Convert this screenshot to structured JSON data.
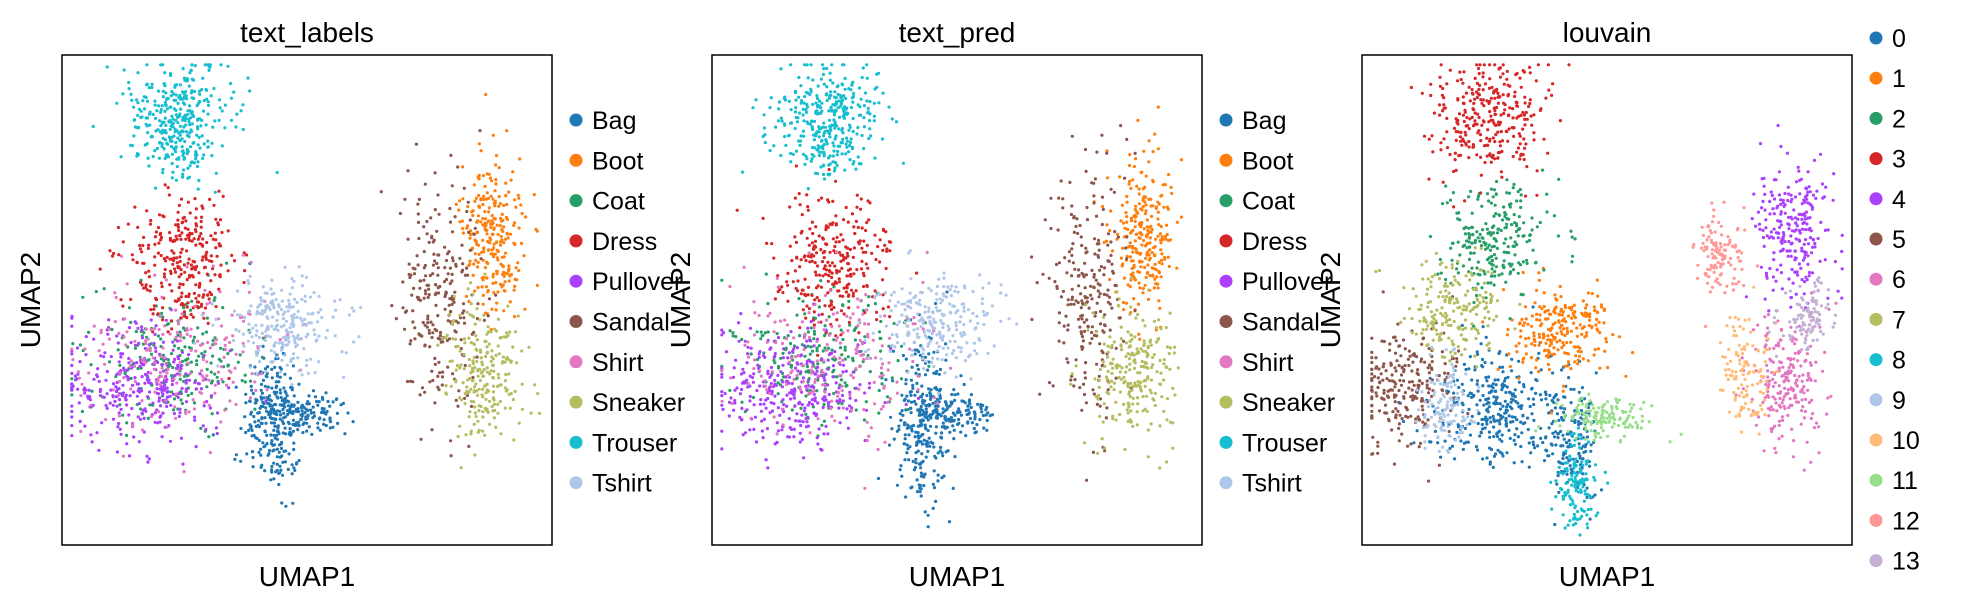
{
  "figure": {
    "background": "#ffffff"
  },
  "chart_data": [
    {
      "type": "scatter",
      "title": "text_labels",
      "xlabel": "UMAP1",
      "ylabel": "UMAP2",
      "xticks": false,
      "yticks": false,
      "legend_position": "right",
      "categories": [
        "Bag",
        "Boot",
        "Coat",
        "Dress",
        "Pullover",
        "Sandal",
        "Shirt",
        "Sneaker",
        "Trouser",
        "Tshirt"
      ],
      "colors": [
        "#1f77b4",
        "#ff7f0e",
        "#279e68",
        "#d62728",
        "#aa40fc",
        "#8c564b",
        "#e377c2",
        "#b5bd61",
        "#17becf",
        "#aec7e8"
      ]
    },
    {
      "type": "scatter",
      "title": "text_pred",
      "xlabel": "UMAP1",
      "ylabel": "UMAP2",
      "xticks": false,
      "yticks": false,
      "legend_position": "right",
      "categories": [
        "Bag",
        "Boot",
        "Coat",
        "Dress",
        "Pullover",
        "Sandal",
        "Shirt",
        "Sneaker",
        "Trouser",
        "Tshirt"
      ],
      "colors": [
        "#1f77b4",
        "#ff7f0e",
        "#279e68",
        "#d62728",
        "#aa40fc",
        "#8c564b",
        "#e377c2",
        "#b5bd61",
        "#17becf",
        "#aec7e8"
      ]
    },
    {
      "type": "scatter",
      "title": "louvain",
      "xlabel": "UMAP1",
      "ylabel": "UMAP2",
      "xticks": false,
      "yticks": false,
      "legend_position": "right",
      "categories": [
        "0",
        "1",
        "2",
        "3",
        "4",
        "5",
        "6",
        "7",
        "8",
        "9",
        "10",
        "11",
        "12",
        "13"
      ],
      "colors": [
        "#1f77b4",
        "#ff7f0e",
        "#279e68",
        "#d62728",
        "#aa40fc",
        "#8c564b",
        "#e377c2",
        "#b5bd61",
        "#17becf",
        "#aec7e8",
        "#ffbb78",
        "#98df8a",
        "#ff9896",
        "#c5b0d5"
      ]
    }
  ]
}
